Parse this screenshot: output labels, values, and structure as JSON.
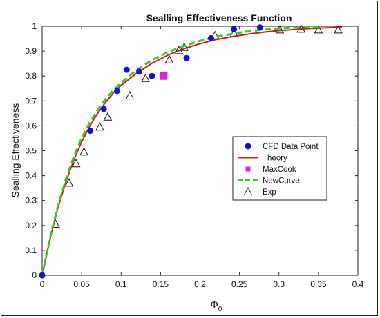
{
  "chart_data": {
    "type": "line",
    "title": "Sealling Effectiveness Function",
    "xlabel": "Φ",
    "xlabel_sub": "0",
    "ylabel": "Sealling Effectiveness",
    "xlim": [
      0,
      0.4
    ],
    "ylim": [
      0,
      1
    ],
    "xticks": [
      0,
      0.05,
      0.1,
      0.15,
      0.2,
      0.25,
      0.3,
      0.35,
      0.4
    ],
    "yticks": [
      0,
      0.1,
      0.2,
      0.3,
      0.4,
      0.5,
      0.6,
      0.7,
      0.8,
      0.9,
      1
    ],
    "xtick_labels": [
      "0",
      "0.05",
      "0.1",
      "0.15",
      "0.2",
      "0.25",
      "0.3",
      "0.35",
      "0.4"
    ],
    "ytick_labels": [
      "0",
      "0.1",
      "0.2",
      "0.3",
      "0.4",
      "0.5",
      "0.6",
      "0.7",
      "0.8",
      "0.9",
      "1"
    ],
    "grid": false,
    "legend_position": "right-center",
    "series": [
      {
        "name": "CFD Data Point",
        "kind": "scatter",
        "marker": "circle",
        "color": "#1010d8",
        "x": [
          0,
          0.061,
          0.078,
          0.095,
          0.107,
          0.123,
          0.139,
          0.183,
          0.214,
          0.243,
          0.276
        ],
        "y": [
          0,
          0.58,
          0.668,
          0.74,
          0.825,
          0.818,
          0.8,
          0.872,
          0.952,
          0.988,
          0.995
        ]
      },
      {
        "name": "Theory",
        "kind": "line",
        "color": "#d01818",
        "x": [
          0,
          0.01,
          0.02,
          0.03,
          0.04,
          0.05,
          0.06,
          0.07,
          0.08,
          0.09,
          0.1,
          0.12,
          0.14,
          0.16,
          0.18,
          0.2,
          0.22,
          0.24,
          0.26,
          0.28,
          0.3,
          0.32,
          0.34,
          0.36,
          0.38
        ],
        "y": [
          0,
          0.145,
          0.27,
          0.374,
          0.462,
          0.535,
          0.597,
          0.649,
          0.693,
          0.731,
          0.763,
          0.812,
          0.853,
          0.885,
          0.91,
          0.93,
          0.946,
          0.958,
          0.968,
          0.976,
          0.982,
          0.987,
          0.991,
          0.994,
          0.996
        ]
      },
      {
        "name": "MaxCook",
        "kind": "scatter",
        "marker": "square",
        "color": "#e020e0",
        "x": [
          0.154
        ],
        "y": [
          0.8
        ]
      },
      {
        "name": "NewCurve",
        "kind": "line",
        "style": "dashed",
        "color": "#33cc22",
        "x": [
          0,
          0.01,
          0.02,
          0.03,
          0.04,
          0.05,
          0.06,
          0.07,
          0.08,
          0.09,
          0.1,
          0.12,
          0.14,
          0.16,
          0.18,
          0.2,
          0.22,
          0.24,
          0.26,
          0.28,
          0.3,
          0.32,
          0.35
        ],
        "y": [
          0,
          0.15,
          0.278,
          0.385,
          0.475,
          0.55,
          0.612,
          0.663,
          0.706,
          0.742,
          0.773,
          0.825,
          0.866,
          0.897,
          0.921,
          0.941,
          0.957,
          0.969,
          0.979,
          0.986,
          0.991,
          0.995,
          0.999
        ]
      },
      {
        "name": "Exp",
        "kind": "scatter",
        "marker": "triangle",
        "color": "#111111",
        "x": [
          0.017,
          0.034,
          0.043,
          0.053,
          0.073,
          0.083,
          0.111,
          0.131,
          0.161,
          0.173,
          0.18,
          0.219,
          0.243,
          0.301,
          0.328,
          0.35,
          0.375
        ],
        "y": [
          0.205,
          0.37,
          0.448,
          0.495,
          0.595,
          0.635,
          0.72,
          0.79,
          0.865,
          0.902,
          0.915,
          0.962,
          0.97,
          0.985,
          0.988,
          0.985,
          0.985
        ]
      }
    ]
  }
}
